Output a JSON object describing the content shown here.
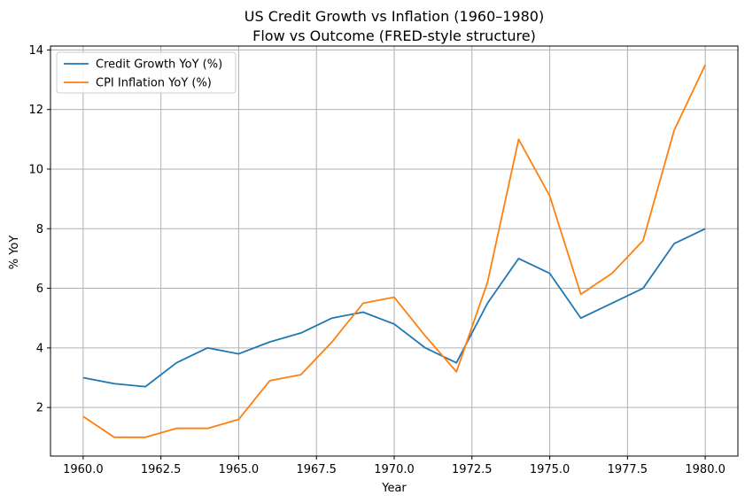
{
  "chart_data": {
    "type": "line",
    "title": "US Credit Growth vs Inflation (1960–1980)",
    "subtitle": "Flow vs Outcome (FRED-style structure)",
    "xlabel": "Year",
    "ylabel": "% YoY",
    "xlim": [
      1958.95,
      1981.05
    ],
    "ylim": [
      0.37,
      14.13
    ],
    "x_ticks": [
      1960.0,
      1962.5,
      1965.0,
      1967.5,
      1970.0,
      1972.5,
      1975.0,
      1977.5,
      1980.0
    ],
    "x_tick_labels": [
      "1960.0",
      "1962.5",
      "1965.0",
      "1967.5",
      "1970.0",
      "1972.5",
      "1975.0",
      "1977.5",
      "1980.0"
    ],
    "y_ticks": [
      2,
      4,
      6,
      8,
      10,
      12,
      14
    ],
    "y_tick_labels": [
      "2",
      "4",
      "6",
      "8",
      "10",
      "12",
      "14"
    ],
    "grid": true,
    "legend_position": "top-left",
    "x": [
      1960,
      1961,
      1962,
      1963,
      1964,
      1965,
      1966,
      1967,
      1968,
      1969,
      1970,
      1971,
      1972,
      1973,
      1974,
      1975,
      1976,
      1977,
      1978,
      1979,
      1980
    ],
    "series": [
      {
        "name": "Credit Growth YoY (%)",
        "color": "#1f77b4",
        "values": [
          3.0,
          2.8,
          2.7,
          3.5,
          4.0,
          3.8,
          4.2,
          4.5,
          5.0,
          5.2,
          4.8,
          4.0,
          3.5,
          5.5,
          7.0,
          6.5,
          5.0,
          5.5,
          6.0,
          7.5,
          8.0
        ]
      },
      {
        "name": "CPI Inflation YoY (%)",
        "color": "#ff7f0e",
        "values": [
          1.7,
          1.0,
          1.0,
          1.3,
          1.3,
          1.6,
          2.9,
          3.1,
          4.2,
          5.5,
          5.7,
          4.4,
          3.2,
          6.2,
          11.0,
          9.1,
          5.8,
          6.5,
          7.6,
          11.3,
          13.5
        ]
      }
    ]
  }
}
